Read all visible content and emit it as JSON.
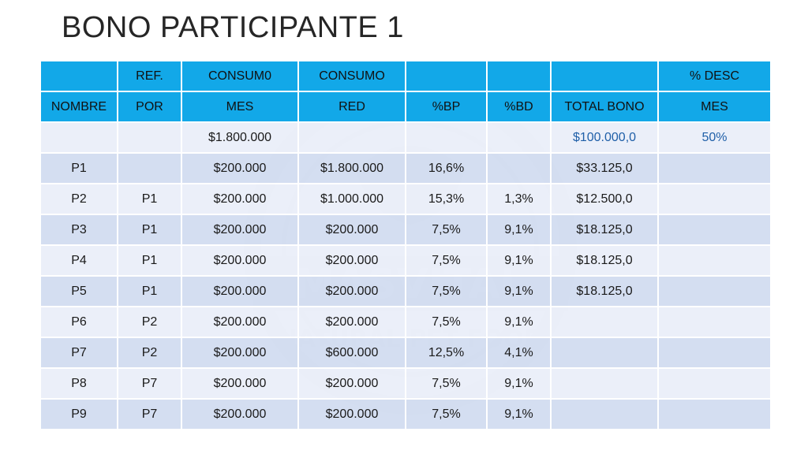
{
  "slide": {
    "title": "BONO PARTICIPANTE 1"
  },
  "colors": {
    "header_bg": "#12a8e8",
    "row_light": "#e9eef8",
    "row_dark": "#d0dbf0",
    "highlight_text": "#1f5fa8"
  },
  "watermark": {
    "icon": "masvital-logo-watermark",
    "brand": "MASVITAL",
    "tagline": "NATURAL PET FOOD"
  },
  "table": {
    "header_row1": [
      "",
      "REF.",
      "CONSUM0",
      "CONSUMO",
      "",
      "",
      "",
      "% DESC"
    ],
    "header_row2": [
      "NOMBRE",
      "POR",
      "MES",
      "RED",
      "%BP",
      "%BD",
      "TOTAL BONO",
      "MES"
    ],
    "summary_row": [
      "",
      "",
      "$1.800.000",
      "",
      "",
      "",
      "$100.000,0",
      "50%"
    ],
    "rows": [
      [
        "P1",
        "",
        "$200.000",
        "$1.800.000",
        "16,6%",
        "",
        "$33.125,0",
        ""
      ],
      [
        "P2",
        "P1",
        "$200.000",
        "$1.000.000",
        "15,3%",
        "1,3%",
        "$12.500,0",
        ""
      ],
      [
        "P3",
        "P1",
        "$200.000",
        "$200.000",
        "7,5%",
        "9,1%",
        "$18.125,0",
        ""
      ],
      [
        "P4",
        "P1",
        "$200.000",
        "$200.000",
        "7,5%",
        "9,1%",
        "$18.125,0",
        ""
      ],
      [
        "P5",
        "P1",
        "$200.000",
        "$200.000",
        "7,5%",
        "9,1%",
        "$18.125,0",
        ""
      ],
      [
        "P6",
        "P2",
        "$200.000",
        "$200.000",
        "7,5%",
        "9,1%",
        "",
        ""
      ],
      [
        "P7",
        "P2",
        "$200.000",
        "$600.000",
        "12,5%",
        "4,1%",
        "",
        ""
      ],
      [
        "P8",
        "P7",
        "$200.000",
        "$200.000",
        "7,5%",
        "9,1%",
        "",
        ""
      ],
      [
        "P9",
        "P7",
        "$200.000",
        "$200.000",
        "7,5%",
        "9,1%",
        "",
        ""
      ]
    ]
  }
}
